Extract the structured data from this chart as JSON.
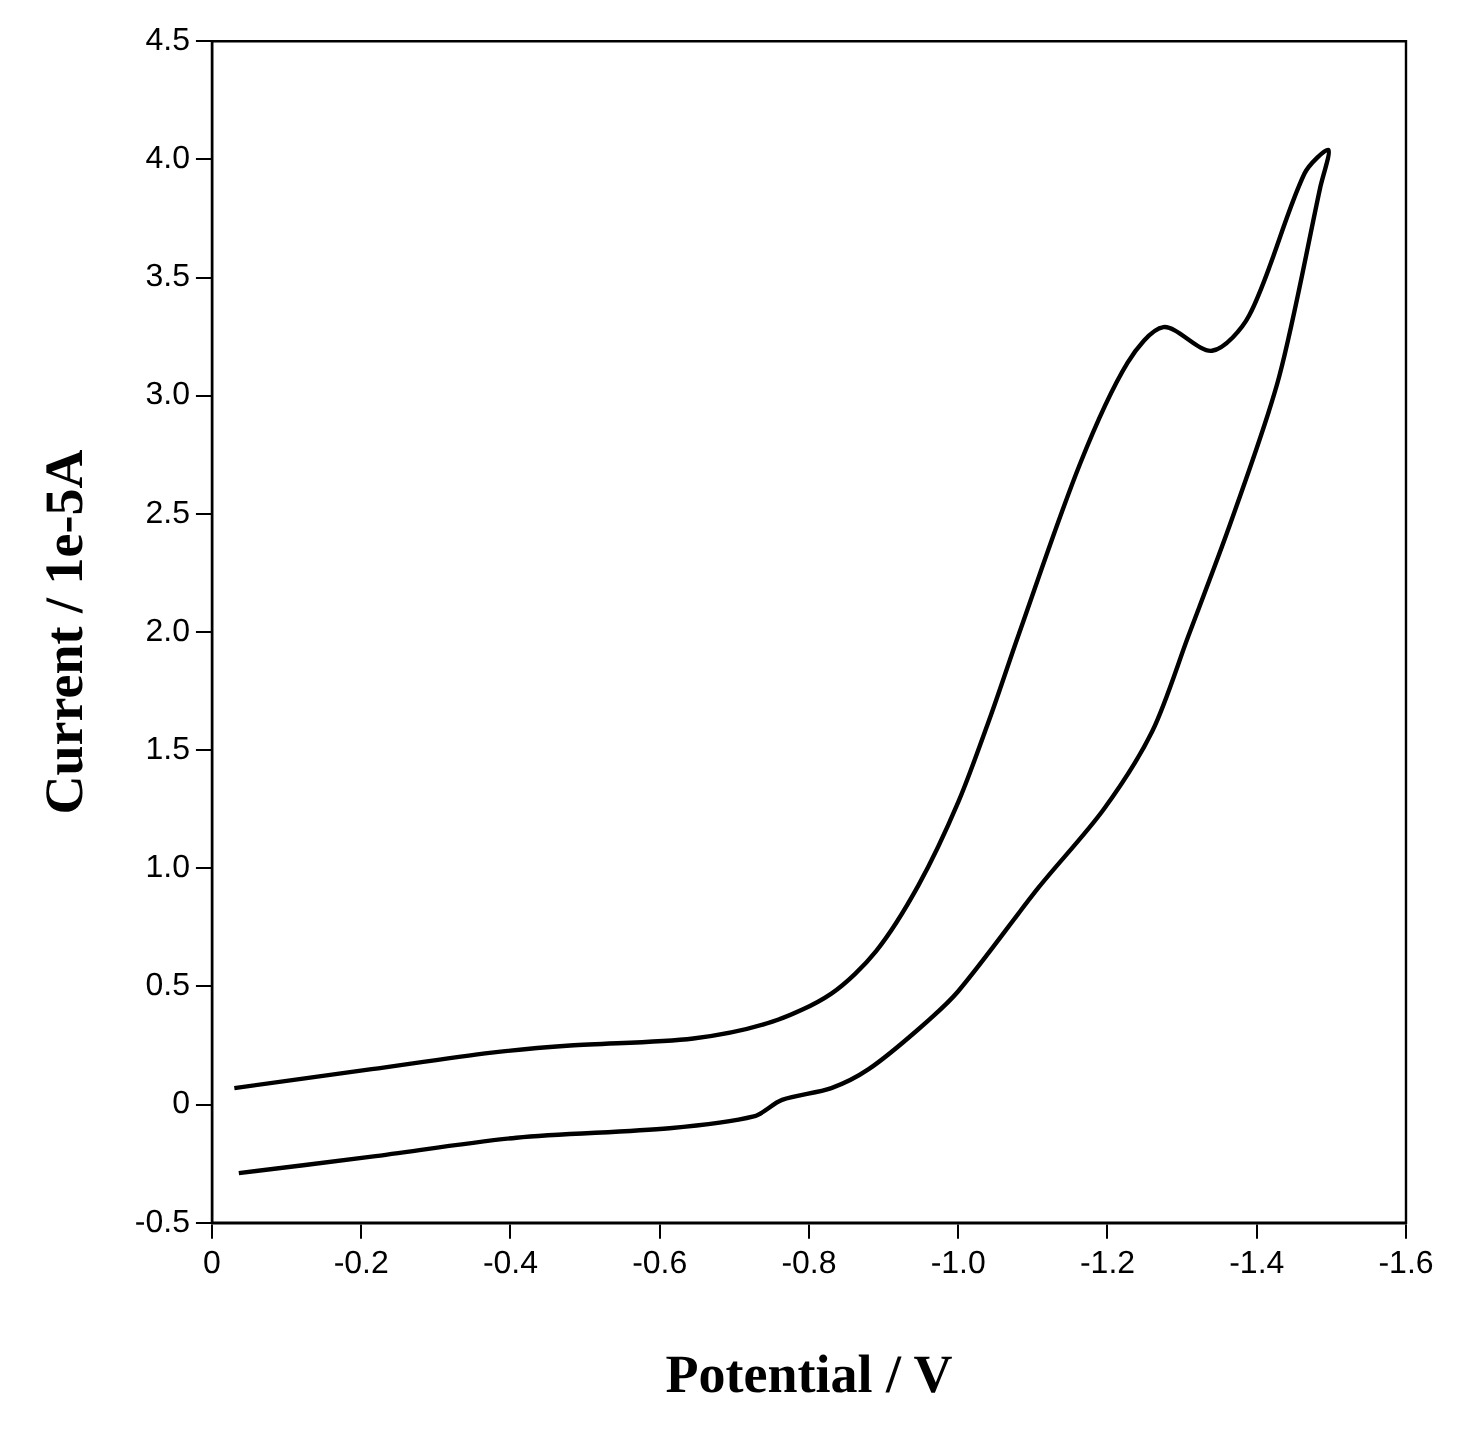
{
  "chart_data": {
    "type": "line",
    "xlabel": "Potential / V",
    "ylabel": "Current / 1e-5A",
    "x": [
      -0.03,
      -0.214,
      -0.375,
      -0.48,
      -0.645,
      -0.75,
      -0.83,
      -0.89,
      -0.947,
      -1.0,
      -1.044,
      -1.08,
      -1.163,
      -1.227,
      -1.275,
      -1.34,
      -1.39,
      -1.464,
      -1.496,
      -1.485,
      -1.43,
      -1.367,
      -1.308,
      -1.26,
      -1.195,
      -1.108,
      -1.0,
      -0.947,
      -0.88,
      -0.83,
      -0.764,
      -0.726,
      -0.613,
      -0.408,
      -0.214,
      -0.036
    ],
    "series": [
      {
        "color": "#000000",
        "values": [
          0.07,
          0.15,
          0.22,
          0.25,
          0.28,
          0.35,
          0.47,
          0.65,
          0.93,
          1.28,
          1.65,
          1.98,
          2.71,
          3.14,
          3.29,
          3.19,
          3.34,
          3.94,
          4.04,
          3.88,
          3.08,
          2.48,
          1.98,
          1.58,
          1.25,
          0.92,
          0.48,
          0.32,
          0.15,
          0.07,
          0.02,
          -0.05,
          -0.1,
          -0.14,
          -0.22,
          -0.29
        ]
      }
    ],
    "xlim": [
      0,
      -1.6
    ],
    "xticks": [
      0,
      -0.2,
      -0.4,
      -0.6,
      -0.8,
      {
        "value": -1,
        "label": "-1.0"
      },
      -1.2,
      -1.4,
      -1.6
    ],
    "ylim": [
      -0.5,
      4.5
    ],
    "yticks": [
      -0.5,
      0,
      0.5,
      {
        "value": 1,
        "label": "1.0"
      },
      1.5,
      {
        "value": 2,
        "label": "2.0"
      },
      2.5,
      {
        "value": 3,
        "label": "3.0"
      },
      3.5,
      {
        "value": 4,
        "label": "4.0"
      },
      4.5
    ],
    "grid": false,
    "legend": false,
    "marker": "none",
    "line_style": "solid"
  }
}
